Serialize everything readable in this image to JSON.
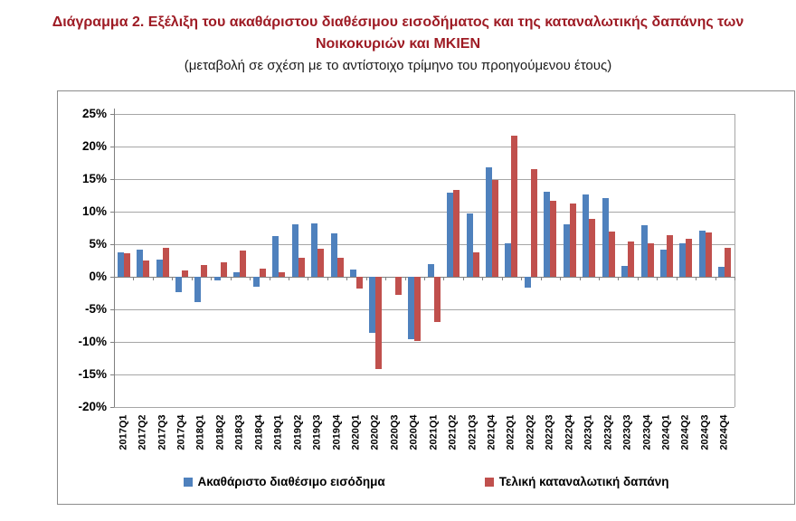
{
  "title": {
    "line1": "Διάγραμμα 2. Εξέλιξη του ακαθάριστου διαθέσιμου εισοδήματος και της καταναλωτικής δαπάνης των",
    "line2": "Νοικοκυριών και ΜΚΙΕΝ",
    "subtitle": "(μεταβολή σε σχέση με το αντίστοιχο τρίμηνο του προηγούμενου έτους)"
  },
  "colors": {
    "title_text": "#9E1B24",
    "income_series": "#4F81BD",
    "consumption_series": "#C0504D",
    "gridline": "#A6A6A6",
    "axis": "#808080"
  },
  "chart_data": {
    "type": "bar",
    "title": "Διάγραμμα 2. Εξέλιξη του ακαθάριστου διαθέσιμου εισοδήματος και της καταναλωτικής δαπάνης των Νοικοκυριών και ΜΚΙΕΝ",
    "subtitle": "(μεταβολή σε σχέση με το αντίστοιχο τρίμηνο του προηγούμενου έτους)",
    "categories": [
      "2017Q1",
      "2017Q2",
      "2017Q3",
      "2017Q4",
      "2018Q1",
      "2018Q2",
      "2018Q3",
      "2018Q4",
      "2019Q1",
      "2019Q2",
      "2019Q3",
      "2019Q4",
      "2020Q1",
      "2020Q2",
      "2020Q3",
      "2020Q4",
      "2021Q1",
      "2021Q2",
      "2021Q3",
      "2021Q4",
      "2022Q1",
      "2022Q2",
      "2022Q3",
      "2022Q4",
      "2023Q1",
      "2023Q2",
      "2023Q3",
      "2023Q4",
      "2024Q1",
      "2024Q2",
      "2024Q3",
      "2024Q4"
    ],
    "series": [
      {
        "name": "Ακαθάριστο διαθέσιμο εισόδημα",
        "color": "#4F81BD",
        "values": [
          3.8,
          4.2,
          2.6,
          -2.3,
          -3.9,
          -0.6,
          0.7,
          -1.5,
          6.3,
          8.0,
          8.2,
          6.6,
          1.1,
          -8.6,
          0.0,
          -9.6,
          2.0,
          12.9,
          9.7,
          16.8,
          5.2,
          -1.7,
          13.1,
          8.1,
          12.7,
          12.1,
          1.6,
          7.9,
          4.1,
          5.2,
          7.1,
          1.5
        ]
      },
      {
        "name": "Τελική καταναλωτική δαπάνη",
        "color": "#C0504D",
        "values": [
          3.6,
          2.5,
          4.4,
          1.0,
          1.8,
          2.2,
          4.0,
          1.3,
          0.7,
          2.9,
          4.3,
          2.9,
          -1.8,
          -14.2,
          -2.8,
          -9.9,
          -7.0,
          13.4,
          3.7,
          14.8,
          21.7,
          16.5,
          11.7,
          11.3,
          8.9,
          6.9,
          5.4,
          5.2,
          6.4,
          5.8,
          6.8,
          4.5
        ]
      }
    ],
    "y_axis": {
      "min": -20,
      "max": 25,
      "step": 5,
      "unit": "%",
      "tick_labels": [
        "25%",
        "20%",
        "15%",
        "10%",
        "5%",
        "0%",
        "-5%",
        "-10%",
        "-15%",
        "-20%"
      ]
    },
    "grid": true,
    "legend_position": "bottom",
    "value_format": "percent"
  }
}
